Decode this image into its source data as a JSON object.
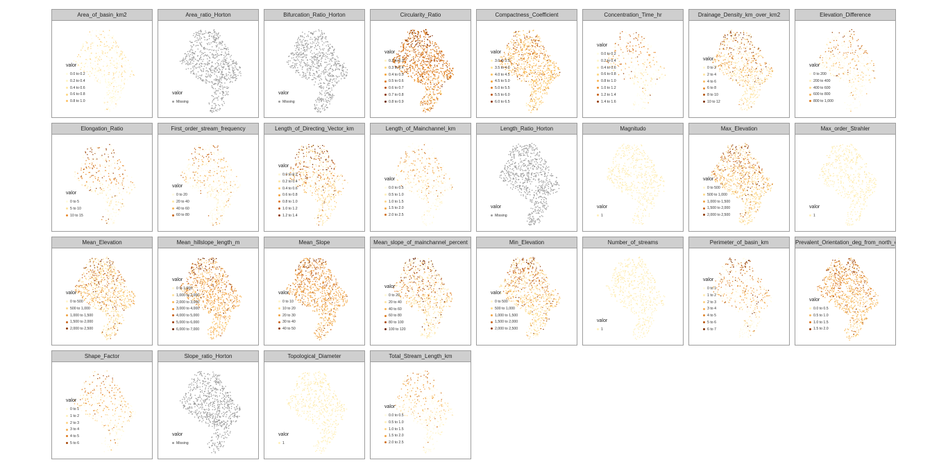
{
  "facets": [
    {
      "title": "Area_of_basin_km2",
      "palette": [
        "#fffce0",
        "#fff5c4",
        "#ffe8a4",
        "#fdd783",
        "#fcc267"
      ],
      "dominant": 0,
      "density": 0.5,
      "legend": {
        "title": "valor",
        "items": [
          "0.0 to 0.2",
          "0.2 to 0.4",
          "0.4 to 0.6",
          "0.6 to 0.8",
          "0.8 to 1.0"
        ]
      }
    },
    {
      "title": "Area_ratio_Horton",
      "palette": [
        "#9a9a9a"
      ],
      "dominant": 0,
      "density": 0.8,
      "legend": {
        "title": "valor",
        "items": [
          "Missing"
        ]
      }
    },
    {
      "title": "Bifurcation_Ratio_Horton",
      "palette": [
        "#9a9a9a"
      ],
      "dominant": 0,
      "density": 0.8,
      "legend": {
        "title": "valor",
        "items": [
          "Missing"
        ]
      }
    },
    {
      "title": "Circularity_Ratio",
      "palette": [
        "#fff3c2",
        "#fdd67a",
        "#f5a43a",
        "#dd7714",
        "#b54d07",
        "#8a3303",
        "#6a2201"
      ],
      "dominant": 3,
      "density": 1.0,
      "legend": {
        "title": "valor",
        "items": [
          "0.2 to 0.3",
          "0.3 to 0.4",
          "0.4 to 0.5",
          "0.5 to 0.6",
          "0.6 to 0.7",
          "0.7 to 0.8",
          "0.8 to 0.9"
        ]
      }
    },
    {
      "title": "Compactness_Coefficient",
      "palette": [
        "#fff3c2",
        "#fde08f",
        "#fbc25e",
        "#f3a23a",
        "#dd7a1c",
        "#b9520a",
        "#8b3504"
      ],
      "dominant": 2,
      "density": 0.85,
      "legend": {
        "title": "valor",
        "items": [
          "3.0 to 3.5",
          "3.5 to 4.0",
          "4.0 to 4.5",
          "4.5 to 5.0",
          "5.0 to 5.5",
          "5.5 to 6.0",
          "6.0 to 6.5"
        ]
      }
    },
    {
      "title": "Concentration_Time_hr",
      "palette": [
        "#fffde6",
        "#fff6cc",
        "#ffeaa8",
        "#fdd57e",
        "#f8b557",
        "#e98c2e",
        "#c65e10",
        "#933a05"
      ],
      "dominant": 0,
      "density": 0.45,
      "legend": {
        "title": "valor",
        "items": [
          "0.0 to 0.2",
          "0.2 to 0.4",
          "0.4 to 0.6",
          "0.6 to 0.8",
          "0.8 to 1.0",
          "1.0 to 1.2",
          "1.2 to 1.4",
          "1.4 to 1.6"
        ]
      }
    },
    {
      "title": "Drainage_Density_km_over_km2",
      "palette": [
        "#fff6cf",
        "#fde3a0",
        "#f9bb61",
        "#e58a2d",
        "#b4550d",
        "#7d2f04"
      ],
      "dominant": 1,
      "density": 0.7,
      "legend": {
        "title": "valor",
        "items": [
          "0 to 2",
          "2 to 4",
          "4 to 6",
          "6 to 8",
          "8 to 10",
          "10 to 12"
        ]
      }
    },
    {
      "title": "Elevation_Difference",
      "palette": [
        "#fffbe2",
        "#fff0bb",
        "#fed98a",
        "#f5b151",
        "#d97a20",
        "#9c4508"
      ],
      "dominant": 0,
      "density": 0.5,
      "legend": {
        "title": "valor",
        "items": [
          "0 to 200",
          "200 to 400",
          "400 to 600",
          "600 to 800",
          "800 to 1,000"
        ]
      }
    },
    {
      "title": "Elongation_Ratio",
      "palette": [
        "#fffbe0",
        "#fde29c",
        "#e98a2c",
        "#9b4206"
      ],
      "dominant": 0,
      "density": 0.5,
      "legend": {
        "title": "valor",
        "items": [
          "0 to 5",
          "5 to 10",
          "10 to 15"
        ]
      }
    },
    {
      "title": "First_order_stream_frequency",
      "palette": [
        "#fffae0",
        "#fde7a8",
        "#f5b455",
        "#c76413"
      ],
      "dominant": 0,
      "density": 0.55,
      "legend": {
        "title": "valor",
        "items": [
          "0 to 20",
          "20 to 40",
          "40 to 60",
          "60 to 80"
        ]
      }
    },
    {
      "title": "Length_of_Directing_Vector_km",
      "palette": [
        "#fff7d4",
        "#fee6a6",
        "#fcc870",
        "#f3a240",
        "#de781d",
        "#b9520a",
        "#8b3504",
        "#6a2201"
      ],
      "dominant": 1,
      "density": 0.6,
      "legend": {
        "title": "valor",
        "items": [
          "0.0 to 0.2",
          "0.2 to 0.4",
          "0.4 to 0.6",
          "0.6 to 0.8",
          "0.8 to 1.0",
          "1.0 to 1.2",
          "1.2 to 1.4"
        ]
      }
    },
    {
      "title": "Length_of_Mainchannel_km",
      "palette": [
        "#fffbe2",
        "#fff0bb",
        "#fdd58a",
        "#f3a647",
        "#cf6e18"
      ],
      "dominant": 0,
      "density": 0.5,
      "legend": {
        "title": "valor",
        "items": [
          "0.0 to 0.5",
          "0.5 to 1.0",
          "1.0 to 1.5",
          "1.5 to 2.0",
          "2.0 to 2.5"
        ]
      }
    },
    {
      "title": "Length_Ratio_Horton",
      "palette": [
        "#9a9a9a"
      ],
      "dominant": 0,
      "density": 0.8,
      "legend": {
        "title": "valor",
        "items": [
          "Missing"
        ]
      }
    },
    {
      "title": "Magnitudo",
      "palette": [
        "#fff0b9",
        "#fde6a2"
      ],
      "dominant": 0,
      "density": 0.55,
      "legend": {
        "title": "valor",
        "items": [
          "1"
        ]
      }
    },
    {
      "title": "Max_Elevation",
      "palette": [
        "#fff5cc",
        "#fcd98a",
        "#f0a243",
        "#c9641a",
        "#8f3a05"
      ],
      "dominant": 1,
      "density": 0.9,
      "legend": {
        "title": "valor",
        "items": [
          "0 to 500",
          "500 to 1,000",
          "1,000 to 1,500",
          "1,500 to 2,000",
          "2,000 to 2,500"
        ]
      }
    },
    {
      "title": "Max_order_Strahler",
      "palette": [
        "#fff0b9",
        "#fde6a2"
      ],
      "dominant": 0,
      "density": 0.55,
      "legend": {
        "title": "valor",
        "items": [
          "1"
        ]
      }
    },
    {
      "title": "Mean_Elevation",
      "palette": [
        "#fff5cc",
        "#fcd98a",
        "#f0a243",
        "#c9641a",
        "#8f3a05"
      ],
      "dominant": 1,
      "density": 0.9,
      "legend": {
        "title": "valor",
        "items": [
          "0 to 500",
          "500 to 1,000",
          "1,000 to 1,500",
          "1,500 to 2,000",
          "2,000 to 2,500"
        ]
      }
    },
    {
      "title": "Mean_hillslope_length_m",
      "palette": [
        "#fff6cf",
        "#fde09a",
        "#f8b65a",
        "#e98b2f",
        "#c75d12",
        "#9a3b05",
        "#6e2401"
      ],
      "dominant": 2,
      "density": 0.95,
      "legend": {
        "title": "valor",
        "items": [
          "0 to 1,000",
          "1,000 to 2,000",
          "2,000 to 3,000",
          "3,000 to 4,000",
          "4,000 to 5,000",
          "5,000 to 6,000",
          "6,000 to 7,000"
        ]
      }
    },
    {
      "title": "Mean_Slope",
      "palette": [
        "#fff5cc",
        "#fcd98a",
        "#f0a243",
        "#c9641a",
        "#8f3a05"
      ],
      "dominant": 2,
      "density": 0.95,
      "legend": {
        "title": "valor",
        "items": [
          "0 to 10",
          "10 to 20",
          "20 to 30",
          "30 to 40",
          "40 to 50"
        ]
      }
    },
    {
      "title": "Mean_slope_of_mainchannel_percent",
      "palette": [
        "#fff8d6",
        "#fde4a2",
        "#f7b659",
        "#de7c22",
        "#a9490a",
        "#6a2201"
      ],
      "dominant": 1,
      "density": 0.7,
      "legend": {
        "title": "valor",
        "items": [
          "0 to 20",
          "20 to 40",
          "40 to 60",
          "60 to 80",
          "80 to 100",
          "100 to 120"
        ]
      }
    },
    {
      "title": "Min_Elevation",
      "palette": [
        "#fff5cc",
        "#fcd98a",
        "#f0a243",
        "#c9641a",
        "#8f3a05"
      ],
      "dominant": 1,
      "density": 0.85,
      "legend": {
        "title": "valor",
        "items": [
          "0 to 500",
          "500 to 1,000",
          "1,000 to 1,500",
          "1,500 to 2,000",
          "2,000 to 2,500"
        ]
      }
    },
    {
      "title": "Number_of_streams",
      "palette": [
        "#fff0b9",
        "#fde6a2"
      ],
      "dominant": 0,
      "density": 0.55,
      "legend": {
        "title": "valor",
        "items": [
          "1"
        ]
      }
    },
    {
      "title": "Perimeter_of_basin_km",
      "palette": [
        "#fffae0",
        "#feeab1",
        "#fcd083",
        "#f6ad52",
        "#e1842a",
        "#b9560c",
        "#7d3003"
      ],
      "dominant": 0,
      "density": 0.6,
      "legend": {
        "title": "valor",
        "items": [
          "0 to 1",
          "1 to 2",
          "2 to 3",
          "3 to 4",
          "4 to 5",
          "5 to 6",
          "6 to 7"
        ]
      }
    },
    {
      "title": "Prevalent_Orientation_deg_from_north_ccw",
      "palette": [
        "#fff1bb",
        "#f7b85c",
        "#d9731c",
        "#9a3e05"
      ],
      "dominant": 1,
      "density": 0.9,
      "legend": {
        "title": "valor",
        "items": [
          "0.0 to 0.5",
          "0.5 to 1.0",
          "1.0 to 1.5",
          "1.5 to 2.0"
        ]
      }
    },
    {
      "title": "Shape_Factor",
      "palette": [
        "#fffbe2",
        "#fff0bb",
        "#fdd58a",
        "#f5ae50",
        "#de7c22",
        "#a9490a"
      ],
      "dominant": 0,
      "density": 0.5,
      "legend": {
        "title": "valor",
        "items": [
          "0 to 1",
          "1 to 2",
          "2 to 3",
          "3 to 4",
          "4 to 5",
          "5 to 6"
        ]
      }
    },
    {
      "title": "Slope_ratio_Horton",
      "palette": [
        "#9a9a9a"
      ],
      "dominant": 0,
      "density": 0.8,
      "legend": {
        "title": "valor",
        "items": [
          "Missing"
        ]
      }
    },
    {
      "title": "Topological_Diameter",
      "palette": [
        "#fff0b9",
        "#fde6a2"
      ],
      "dominant": 0,
      "density": 0.55,
      "legend": {
        "title": "valor",
        "items": [
          "1"
        ]
      }
    },
    {
      "title": "Total_Stream_Length_km",
      "palette": [
        "#fffbe2",
        "#fff0bb",
        "#fdd58a",
        "#f3a647",
        "#cf6e18"
      ],
      "dominant": 0,
      "density": 0.5,
      "legend": {
        "title": "valor",
        "items": [
          "0.0 to 0.5",
          "0.5 to 1.0",
          "1.0 to 1.5",
          "1.5 to 2.0",
          "2.0 to 2.5"
        ]
      }
    }
  ]
}
